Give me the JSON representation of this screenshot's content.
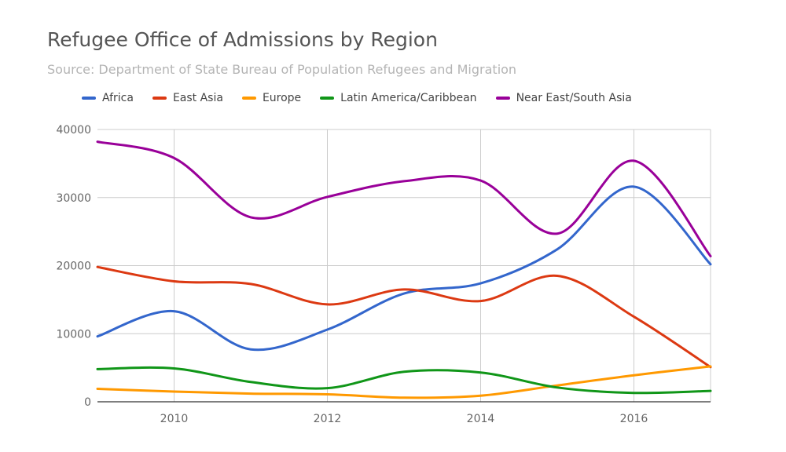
{
  "chart_data": {
    "type": "line",
    "title": "Refugee Office of Admissions by Region",
    "subtitle": "Source: Department of State Bureau of Population Refugees and Migration",
    "xlabel": "",
    "ylabel": "",
    "x": [
      2009,
      2010,
      2011,
      2012,
      2013,
      2014,
      2015,
      2016,
      2017
    ],
    "x_ticks": [
      2010,
      2012,
      2014,
      2016
    ],
    "xlim": [
      2009,
      2017
    ],
    "ylim": [
      0,
      40000
    ],
    "y_ticks": [
      0,
      10000,
      20000,
      30000,
      40000
    ],
    "grid": true,
    "legend_position": "top",
    "smooth": true,
    "series": [
      {
        "name": "Africa",
        "color": "#3366cc",
        "values": [
          9600,
          13300,
          7700,
          10600,
          15900,
          17400,
          22400,
          31600,
          20200
        ]
      },
      {
        "name": "East Asia",
        "color": "#dc3912",
        "values": [
          19800,
          17700,
          17300,
          14300,
          16500,
          14800,
          18500,
          12500,
          5100
        ]
      },
      {
        "name": "Europe",
        "color": "#ff9900",
        "values": [
          1900,
          1500,
          1200,
          1100,
          600,
          900,
          2400,
          3900,
          5200
        ]
      },
      {
        "name": "Latin America/Caribbean",
        "color": "#109618",
        "values": [
          4800,
          4900,
          2900,
          2000,
          4400,
          4300,
          2100,
          1300,
          1600
        ]
      },
      {
        "name": "Near East/South Asia",
        "color": "#990099",
        "values": [
          38200,
          35800,
          27100,
          30100,
          32400,
          32500,
          24700,
          35400,
          21400
        ]
      }
    ]
  }
}
